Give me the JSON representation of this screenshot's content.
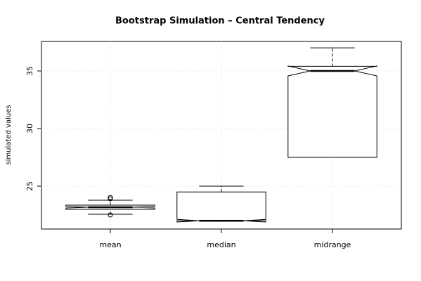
{
  "chart_data": {
    "type": "box",
    "title": "Bootstrap Simulation – Central Tendency",
    "y_label": "simulated values",
    "categories": [
      "mean",
      "median",
      "midrange"
    ],
    "boxes": [
      {
        "whislo": 22.56,
        "q1": 22.99,
        "median": 23.17,
        "q3": 23.35,
        "whishi": 23.78,
        "notch_lo": 23.1,
        "notch_hi": 23.24,
        "outliers": [
          24.02,
          23.9,
          22.5
        ]
      },
      {
        "whislo": 22,
        "q1": 22,
        "median": 22,
        "q3": 24.5,
        "whishi": 25,
        "notch_lo": 21.89,
        "notch_hi": 22.12,
        "outliers": []
      },
      {
        "whislo": 27.5,
        "q1": 27.5,
        "median": 35,
        "q3": 35.4,
        "whishi": 37,
        "notch_lo": 34.57,
        "notch_hi": 35.43,
        "outliers": []
      }
    ],
    "ylim": [
      21.28,
      37.56
    ],
    "yticks": [
      25,
      30,
      35
    ],
    "grid": true,
    "color": "#000000"
  }
}
